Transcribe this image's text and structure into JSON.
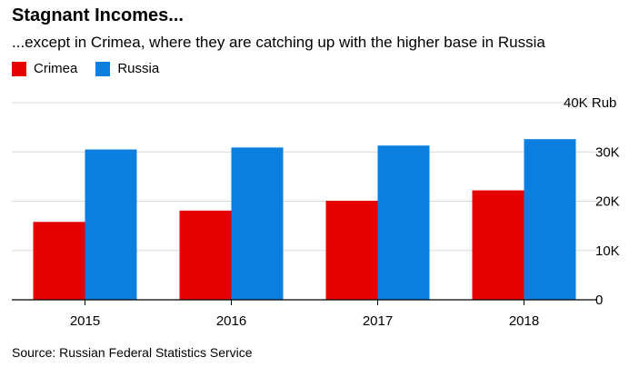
{
  "title": "Stagnant Incomes...",
  "subtitle": "...except in Crimea, where they are catching up with the higher base in Russia",
  "source": "Source: Russian Federal Statistics Service",
  "colors": {
    "Crimea": "#e60000",
    "Russia": "#0a7fe0",
    "grid": "#d9d9d9",
    "axis": "#000000"
  },
  "chart_data": {
    "type": "bar",
    "categories": [
      "2015",
      "2016",
      "2017",
      "2018"
    ],
    "series": [
      {
        "name": "Crimea",
        "values": [
          15800,
          18100,
          20100,
          22200
        ]
      },
      {
        "name": "Russia",
        "values": [
          30500,
          30900,
          31300,
          32600
        ]
      }
    ],
    "yticks": [
      0,
      10000,
      20000,
      30000,
      40000
    ],
    "ytick_labels": [
      "0",
      "10K",
      "20K",
      "30K",
      "40K Rub"
    ],
    "ylim": [
      0,
      40000
    ],
    "grid": true,
    "legend": "top-left",
    "xlabel": "",
    "ylabel": ""
  }
}
